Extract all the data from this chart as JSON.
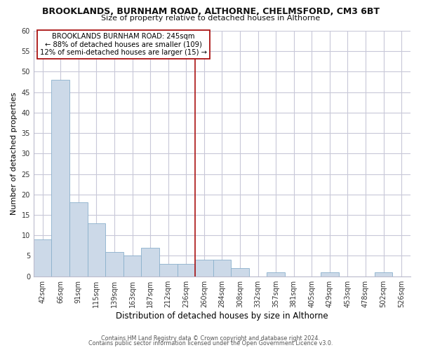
{
  "title": "BROOKLANDS, BURNHAM ROAD, ALTHORNE, CHELMSFORD, CM3 6BT",
  "subtitle": "Size of property relative to detached houses in Althorne",
  "xlabel": "Distribution of detached houses by size in Althorne",
  "ylabel": "Number of detached properties",
  "footer_line1": "Contains HM Land Registry data © Crown copyright and database right 2024.",
  "footer_line2": "Contains public sector information licensed under the Open Government Licence v3.0.",
  "bin_labels": [
    "42sqm",
    "66sqm",
    "91sqm",
    "115sqm",
    "139sqm",
    "163sqm",
    "187sqm",
    "212sqm",
    "236sqm",
    "260sqm",
    "284sqm",
    "308sqm",
    "332sqm",
    "357sqm",
    "381sqm",
    "405sqm",
    "429sqm",
    "453sqm",
    "478sqm",
    "502sqm",
    "526sqm"
  ],
  "bar_heights": [
    9,
    48,
    18,
    13,
    6,
    5,
    7,
    3,
    3,
    4,
    4,
    2,
    0,
    1,
    0,
    0,
    1,
    0,
    0,
    1,
    0
  ],
  "bar_color": "#ccd9e8",
  "bar_edge_color": "#8ab0cc",
  "vline_x": 8.5,
  "vline_color": "#aa1111",
  "annotation_title": "BROOKLANDS BURNHAM ROAD: 245sqm",
  "annotation_line1": "← 88% of detached houses are smaller (109)",
  "annotation_line2": "12% of semi-detached houses are larger (15) →",
  "annotation_box_color": "#ffffff",
  "annotation_box_edge": "#aa1111",
  "ylim": [
    0,
    60
  ],
  "yticks": [
    0,
    5,
    10,
    15,
    20,
    25,
    30,
    35,
    40,
    45,
    50,
    55,
    60
  ],
  "grid_color": "#c8c8d8",
  "background_color": "#ffffff"
}
